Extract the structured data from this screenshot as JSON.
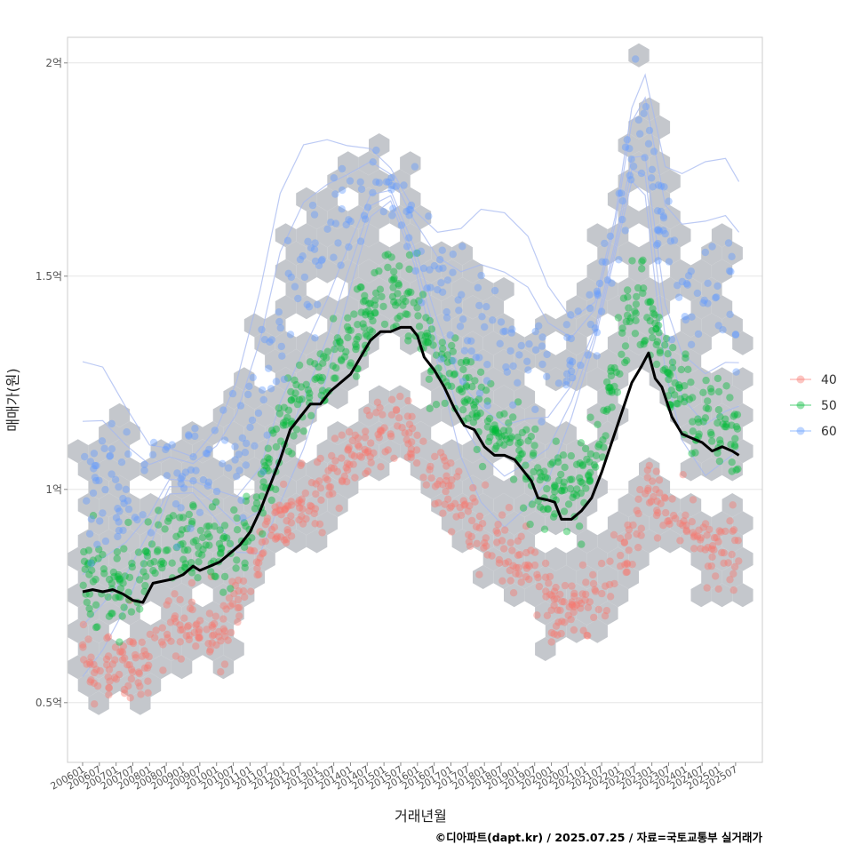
{
  "chart_data": {
    "type": "scatter",
    "title": "",
    "xlabel": "거래년월",
    "ylabel": "매매가(원)",
    "caption": "©디아파트(dapt.kr) / 2025.07.25 / 자료=국토교통부 실거래가",
    "x_ticks": [
      "200601",
      "200607",
      "200701",
      "200707",
      "200801",
      "200807",
      "200901",
      "200907",
      "201001",
      "201007",
      "201101",
      "201107",
      "201201",
      "201207",
      "201301",
      "201307",
      "201401",
      "201407",
      "201501",
      "201507",
      "201601",
      "201607",
      "201701",
      "201707",
      "201801",
      "201807",
      "201901",
      "201907",
      "202001",
      "202007",
      "202101",
      "202107",
      "202201",
      "202207",
      "202301",
      "202307",
      "202401",
      "202407",
      "202501",
      "202507"
    ],
    "y_ticks": [
      {
        "value": 0.5,
        "label": "0.5억"
      },
      {
        "value": 1.0,
        "label": "1억"
      },
      {
        "value": 1.5,
        "label": "1.5억"
      },
      {
        "value": 2.0,
        "label": "2억"
      }
    ],
    "y_unit": "억",
    "ylim": [
      0.36,
      2.06
    ],
    "xlim": [
      2005.55,
      2026.3
    ],
    "grid": true,
    "legend": {
      "placement": "right",
      "entries": [
        {
          "name": "40",
          "color": "#F8766D"
        },
        {
          "name": "50",
          "color": "#00BA38"
        },
        {
          "name": "60",
          "color": "#619CFF"
        }
      ]
    },
    "hex_color": "#C4C7CC",
    "trend_line": {
      "color": "#000000",
      "points": [
        [
          2006.0,
          0.76
        ],
        [
          2006.3,
          0.765
        ],
        [
          2006.6,
          0.76
        ],
        [
          2006.9,
          0.765
        ],
        [
          2007.2,
          0.755
        ],
        [
          2007.5,
          0.74
        ],
        [
          2007.8,
          0.735
        ],
        [
          2008.1,
          0.78
        ],
        [
          2008.4,
          0.785
        ],
        [
          2008.7,
          0.79
        ],
        [
          2009.0,
          0.8
        ],
        [
          2009.3,
          0.82
        ],
        [
          2009.5,
          0.81
        ],
        [
          2009.8,
          0.82
        ],
        [
          2010.1,
          0.83
        ],
        [
          2010.4,
          0.85
        ],
        [
          2010.7,
          0.87
        ],
        [
          2011.0,
          0.9
        ],
        [
          2011.3,
          0.95
        ],
        [
          2011.6,
          1.01
        ],
        [
          2011.9,
          1.07
        ],
        [
          2012.2,
          1.14
        ],
        [
          2012.5,
          1.17
        ],
        [
          2012.8,
          1.2
        ],
        [
          2013.1,
          1.2
        ],
        [
          2013.4,
          1.23
        ],
        [
          2013.7,
          1.25
        ],
        [
          2014.0,
          1.27
        ],
        [
          2014.3,
          1.31
        ],
        [
          2014.6,
          1.35
        ],
        [
          2014.9,
          1.37
        ],
        [
          2015.2,
          1.37
        ],
        [
          2015.5,
          1.38
        ],
        [
          2015.8,
          1.38
        ],
        [
          2016.0,
          1.36
        ],
        [
          2016.2,
          1.31
        ],
        [
          2016.5,
          1.28
        ],
        [
          2016.8,
          1.24
        ],
        [
          2017.1,
          1.19
        ],
        [
          2017.4,
          1.15
        ],
        [
          2017.7,
          1.14
        ],
        [
          2018.0,
          1.1
        ],
        [
          2018.3,
          1.08
        ],
        [
          2018.6,
          1.08
        ],
        [
          2018.9,
          1.07
        ],
        [
          2019.1,
          1.05
        ],
        [
          2019.4,
          1.02
        ],
        [
          2019.6,
          0.98
        ],
        [
          2019.9,
          0.975
        ],
        [
          2020.1,
          0.97
        ],
        [
          2020.3,
          0.93
        ],
        [
          2020.6,
          0.93
        ],
        [
          2020.9,
          0.95
        ],
        [
          2021.2,
          0.98
        ],
        [
          2021.5,
          1.04
        ],
        [
          2021.8,
          1.11
        ],
        [
          2022.1,
          1.18
        ],
        [
          2022.4,
          1.25
        ],
        [
          2022.7,
          1.29
        ],
        [
          2022.9,
          1.32
        ],
        [
          2023.1,
          1.26
        ],
        [
          2023.3,
          1.24
        ],
        [
          2023.6,
          1.17
        ],
        [
          2023.9,
          1.13
        ],
        [
          2024.2,
          1.12
        ],
        [
          2024.5,
          1.11
        ],
        [
          2024.8,
          1.09
        ],
        [
          2025.1,
          1.1
        ],
        [
          2025.4,
          1.09
        ],
        [
          2025.6,
          1.08
        ]
      ]
    },
    "series": [
      {
        "name": "40",
        "color": "#F8766D",
        "center_curve": [
          [
            2006.0,
            0.61
          ],
          [
            2007.0,
            0.58
          ],
          [
            2007.6,
            0.57
          ],
          [
            2008.3,
            0.66
          ],
          [
            2009.0,
            0.67
          ],
          [
            2009.6,
            0.66
          ],
          [
            2010.3,
            0.69
          ],
          [
            2011.0,
            0.8
          ],
          [
            2011.6,
            0.9
          ],
          [
            2012.3,
            0.94
          ],
          [
            2012.9,
            0.98
          ],
          [
            2013.6,
            1.05
          ],
          [
            2014.3,
            1.11
          ],
          [
            2014.9,
            1.14
          ],
          [
            2015.6,
            1.13
          ],
          [
            2016.3,
            1.06
          ],
          [
            2017.0,
            1.0
          ],
          [
            2017.6,
            0.94
          ],
          [
            2018.3,
            0.87
          ],
          [
            2018.9,
            0.84
          ],
          [
            2019.6,
            0.79
          ],
          [
            2020.2,
            0.72
          ],
          [
            2020.9,
            0.71
          ],
          [
            2021.6,
            0.76
          ],
          [
            2022.3,
            0.88
          ],
          [
            2022.9,
            1.0
          ],
          [
            2023.6,
            0.93
          ],
          [
            2024.3,
            0.88
          ],
          [
            2024.9,
            0.85
          ],
          [
            2025.5,
            0.84
          ]
        ],
        "spread": 0.045,
        "count": 620
      },
      {
        "name": "50",
        "color": "#00BA38",
        "center_curve": [
          [
            2006.0,
            0.8
          ],
          [
            2006.6,
            0.78
          ],
          [
            2007.3,
            0.77
          ],
          [
            2008.0,
            0.85
          ],
          [
            2008.6,
            0.88
          ],
          [
            2009.3,
            0.86
          ],
          [
            2010.0,
            0.87
          ],
          [
            2010.6,
            0.88
          ],
          [
            2011.3,
            0.98
          ],
          [
            2011.9,
            1.12
          ],
          [
            2012.6,
            1.22
          ],
          [
            2013.3,
            1.28
          ],
          [
            2013.9,
            1.33
          ],
          [
            2014.6,
            1.4
          ],
          [
            2015.2,
            1.46
          ],
          [
            2015.9,
            1.42
          ],
          [
            2016.6,
            1.31
          ],
          [
            2017.3,
            1.23
          ],
          [
            2017.9,
            1.19
          ],
          [
            2018.6,
            1.13
          ],
          [
            2019.3,
            1.07
          ],
          [
            2019.9,
            1.0
          ],
          [
            2020.6,
            1.0
          ],
          [
            2021.3,
            1.07
          ],
          [
            2021.9,
            1.25
          ],
          [
            2022.3,
            1.4
          ],
          [
            2022.7,
            1.46
          ],
          [
            2023.3,
            1.3
          ],
          [
            2023.9,
            1.22
          ],
          [
            2024.6,
            1.17
          ],
          [
            2025.2,
            1.16
          ],
          [
            2025.6,
            1.15
          ]
        ],
        "spread": 0.05,
        "count": 760
      },
      {
        "name": "60",
        "color": "#619CFF",
        "center_curve": [
          [
            2006.0,
            0.98
          ],
          [
            2006.6,
            1.0
          ],
          [
            2007.3,
            0.99
          ],
          [
            2008.0,
            1.0
          ],
          [
            2008.6,
            1.05
          ],
          [
            2009.3,
            1.04
          ],
          [
            2010.0,
            1.05
          ],
          [
            2010.6,
            1.08
          ],
          [
            2011.3,
            1.2
          ],
          [
            2011.9,
            1.38
          ],
          [
            2012.6,
            1.5
          ],
          [
            2013.3,
            1.58
          ],
          [
            2013.9,
            1.65
          ],
          [
            2014.6,
            1.73
          ],
          [
            2015.2,
            1.72
          ],
          [
            2015.9,
            1.6
          ],
          [
            2016.6,
            1.47
          ],
          [
            2017.3,
            1.38
          ],
          [
            2017.9,
            1.36
          ],
          [
            2018.6,
            1.33
          ],
          [
            2019.3,
            1.32
          ],
          [
            2019.9,
            1.28
          ],
          [
            2020.6,
            1.3
          ],
          [
            2021.3,
            1.4
          ],
          [
            2021.9,
            1.6
          ],
          [
            2022.4,
            1.82
          ],
          [
            2022.8,
            1.85
          ],
          [
            2023.4,
            1.55
          ],
          [
            2023.9,
            1.47
          ],
          [
            2024.6,
            1.45
          ],
          [
            2025.2,
            1.47
          ],
          [
            2025.6,
            1.45
          ]
        ],
        "spread": 0.07,
        "count": 380
      }
    ]
  }
}
